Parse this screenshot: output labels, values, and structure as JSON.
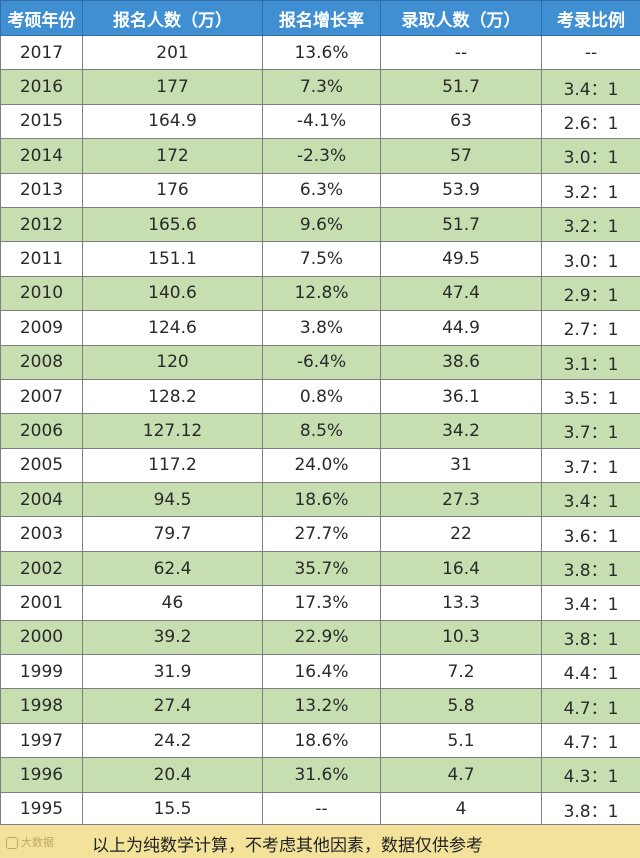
{
  "headers": [
    "考硕年份",
    "报名人数（万）",
    "报名增长率",
    "录取人数（万）",
    "考录比例"
  ],
  "rows": [
    [
      "2017",
      "201",
      "13.6%",
      "--",
      "--"
    ],
    [
      "2016",
      "177",
      "7.3%",
      "51.7",
      "3.4：1"
    ],
    [
      "2015",
      "164.9",
      "-4.1%",
      "63",
      "2.6：1"
    ],
    [
      "2014",
      "172",
      "-2.3%",
      "57",
      "3.0：1"
    ],
    [
      "2013",
      "176",
      "6.3%",
      "53.9",
      "3.2：1"
    ],
    [
      "2012",
      "165.6",
      "9.6%",
      "51.7",
      "3.2：1"
    ],
    [
      "2011",
      "151.1",
      "7.5%",
      "49.5",
      "3.0：1"
    ],
    [
      "2010",
      "140.6",
      "12.8%",
      "47.4",
      "2.9：1"
    ],
    [
      "2009",
      "124.6",
      "3.8%",
      "44.9",
      "2.7：1"
    ],
    [
      "2008",
      "120",
      "-6.4%",
      "38.6",
      "3.1：1"
    ],
    [
      "2007",
      "128.2",
      "0.8%",
      "36.1",
      "3.5：1"
    ],
    [
      "2006",
      "127.12",
      "8.5%",
      "34.2",
      "3.7：1"
    ],
    [
      "2005",
      "117.2",
      "24.0%",
      "31",
      "3.7：1"
    ],
    [
      "2004",
      "94.5",
      "18.6%",
      "27.3",
      "3.4：1"
    ],
    [
      "2003",
      "79.7",
      "27.7%",
      "22",
      "3.6：1"
    ],
    [
      "2002",
      "62.4",
      "35.7%",
      "16.4",
      "3.8：1"
    ],
    [
      "2001",
      "46",
      "17.3%",
      "13.3",
      "3.4：1"
    ],
    [
      "2000",
      "39.2",
      "22.9%",
      "10.3",
      "3.8：1"
    ],
    [
      "1999",
      "31.9",
      "16.4%",
      "7.2",
      "4.4：1"
    ],
    [
      "1998",
      "27.4",
      "13.2%",
      "5.8",
      "4.7：1"
    ],
    [
      "1997",
      "24.2",
      "18.6%",
      "5.1",
      "4.7：1"
    ],
    [
      "1996",
      "20.4",
      "31.6%",
      "4.7",
      "4.3：1"
    ],
    [
      "1995",
      "15.5",
      "--",
      "4",
      "3.8：1"
    ]
  ],
  "footer_note": "以上为纯数学计算，不考虑其他因素，数据仅供参考",
  "watermark": "大数据",
  "colors": {
    "header_bg": "#3f8fd2",
    "header_text": "#ffffff",
    "row_green": "#c6deb0",
    "row_white": "#ffffff",
    "footer_bg": "#f3e39a"
  }
}
